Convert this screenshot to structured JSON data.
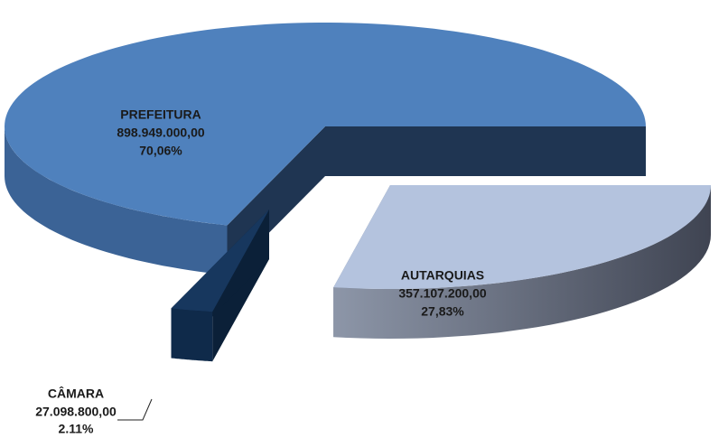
{
  "chart_data": {
    "type": "pie",
    "categories": [
      "AUTARQUIAS",
      "CÂMARA",
      "PREFEITURA"
    ],
    "values": [
      357107200,
      27098800,
      898949000
    ],
    "value_labels": [
      "357.107.200,00",
      "27.098.800,00",
      "898.949.000,00"
    ],
    "shares": [
      27.83,
      2.11,
      70.06
    ],
    "share_labels": [
      "27,83%",
      "2.11%",
      "70,06%"
    ],
    "colors": [
      "#b4c3de",
      "#17375e",
      "#4f81bd"
    ]
  }
}
